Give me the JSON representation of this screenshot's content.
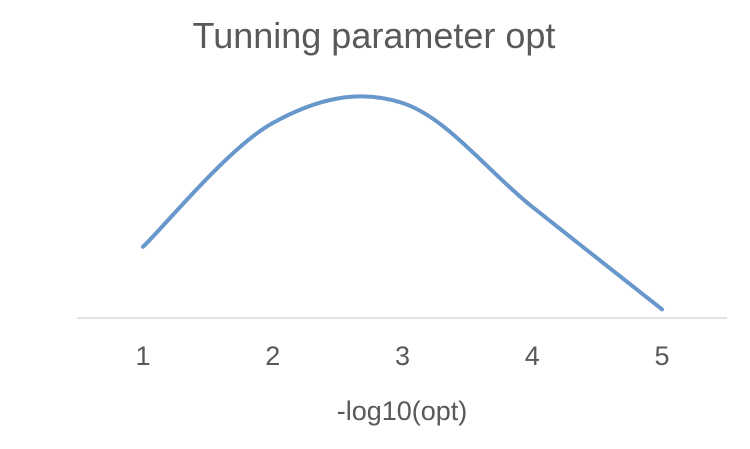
{
  "chart_data": {
    "type": "line",
    "title": "Tunning parameter opt",
    "xlabel": "-log10(opt)",
    "ylabel": "",
    "categories": [
      "1",
      "2",
      "3",
      "4",
      "5"
    ],
    "x": [
      1,
      2,
      3,
      4,
      5
    ],
    "series": [
      {
        "values": [
          0.52,
          1.45,
          1.6,
          0.82,
          0.05
        ],
        "color": "#6897cb",
        "smooth": true
      }
    ],
    "ylim": [
      0,
      1.8
    ],
    "grid": false,
    "y_axis_visible": false,
    "legend": "none"
  }
}
